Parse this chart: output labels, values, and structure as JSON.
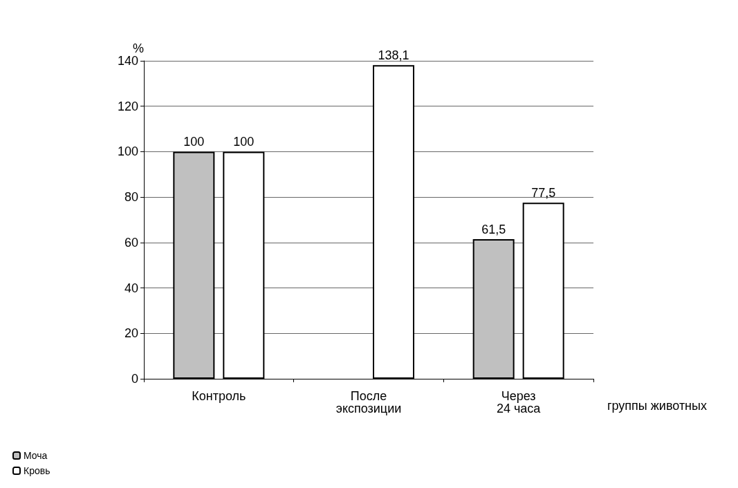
{
  "chart_data": {
    "type": "bar",
    "ylabel": "%",
    "xlabel": "группы животных",
    "categories": [
      "Контроль",
      "После экспозиции",
      "Через 24 часа"
    ],
    "series": [
      {
        "name": "Моча",
        "color": "#c0c0c0",
        "values": [
          100,
          null,
          61.5
        ],
        "value_labels": [
          "100",
          null,
          "61,5"
        ]
      },
      {
        "name": "Кровь",
        "color": "#ffffff",
        "values": [
          100,
          138.1,
          77.5
        ],
        "value_labels": [
          "100",
          "138,1",
          "77,5"
        ]
      }
    ],
    "ylim": [
      0,
      140
    ],
    "yticks": [
      0,
      20,
      40,
      60,
      80,
      100,
      120,
      140
    ],
    "grid": "y",
    "legend": "bottom left"
  }
}
